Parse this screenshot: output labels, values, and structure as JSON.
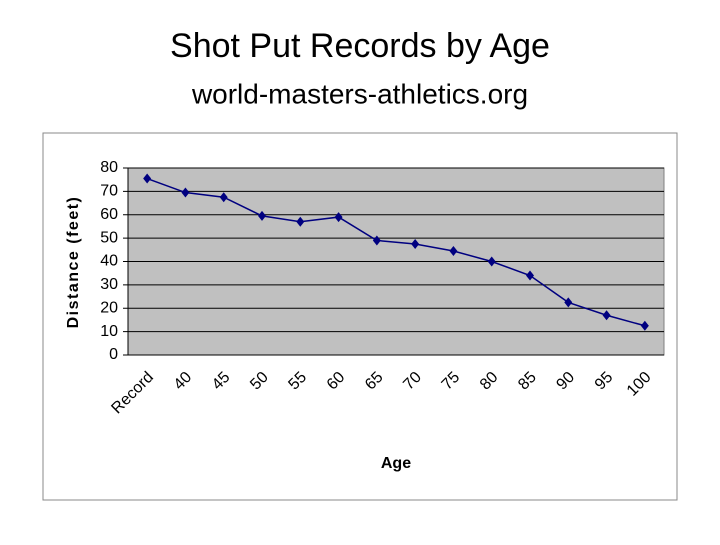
{
  "chart_data": {
    "type": "line",
    "title": "Shot Put Records by Age",
    "subtitle": "world-masters-athletics.org",
    "x_label": "Age",
    "y_label": "Distance (feet)",
    "categories": [
      "Record",
      "40",
      "45",
      "50",
      "55",
      "60",
      "65",
      "70",
      "75",
      "80",
      "85",
      "90",
      "95",
      "100"
    ],
    "values": [
      75.5,
      69.5,
      67.5,
      59.5,
      57,
      59,
      49,
      47.5,
      44.5,
      40,
      34,
      22.5,
      17,
      12.5
    ],
    "color": "#000080",
    "plot_background": "#c0c0c0",
    "ylim": [
      0,
      80
    ],
    "yticks": [
      0,
      10,
      20,
      30,
      40,
      50,
      60,
      70,
      80
    ],
    "grid": true
  }
}
